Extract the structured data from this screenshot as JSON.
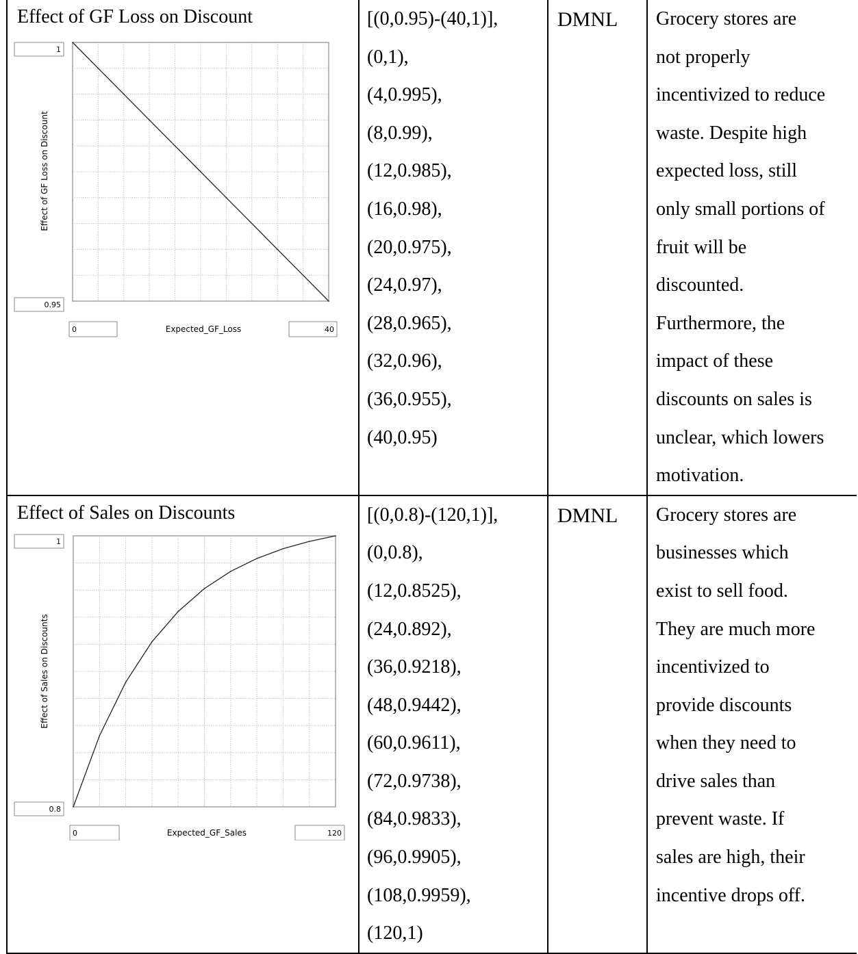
{
  "rows": [
    {
      "name": "Effect of GF Loss on Discount",
      "lookup_lines": [
        "[(0,0.95)-(40,1)],",
        "(0,1),",
        "(4,0.995),",
        "(8,0.99),",
        "(12,0.985),",
        "(16,0.98),",
        "(20,0.975),",
        "(24,0.97),",
        "(28,0.965),",
        "(32,0.96),",
        "(36,0.955),",
        "(40,0.95)"
      ],
      "unit": "DMNL",
      "description_lines": [
        "Grocery stores are",
        "not properly",
        "incentivized to reduce",
        "waste. Despite high",
        "expected loss, still",
        "only small portions of",
        "fruit will be",
        "discounted.",
        "Furthermore, the",
        "impact of these",
        "discounts on sales is",
        "unclear, which lowers",
        "motivation."
      ]
    },
    {
      "name": "Effect of Sales on Discounts",
      "lookup_lines": [
        "[(0,0.8)-(120,1)],",
        "(0,0.8),",
        "(12,0.8525),",
        "(24,0.892),",
        "(36,0.9218),",
        "(48,0.9442),",
        "(60,0.9611),",
        "(72,0.9738),",
        "(84,0.9833),",
        "(96,0.9905),",
        "(108,0.9959),",
        "(120,1)"
      ],
      "unit": "DMNL",
      "description_lines": [
        "Grocery stores are",
        "businesses which",
        "exist to sell food.",
        "They are much more",
        "incentivized to",
        "provide discounts",
        "when they need to",
        "drive sales than",
        "prevent waste. If",
        "sales are high, their",
        "incentive drops off."
      ]
    }
  ],
  "chart_data": [
    {
      "type": "line",
      "ylabel": "Effect of GF Loss on Discount",
      "xlabel": "Expected_GF_Loss",
      "xmin_label": "0",
      "xmax_label": "40",
      "ymin_label": "0.95",
      "ymax_label": "1",
      "xlim": [
        0,
        40
      ],
      "ylim": [
        0.95,
        1
      ],
      "grid": true,
      "x": [
        0,
        4,
        8,
        12,
        16,
        20,
        24,
        28,
        32,
        36,
        40
      ],
      "y": [
        1,
        0.995,
        0.99,
        0.985,
        0.98,
        0.975,
        0.97,
        0.965,
        0.96,
        0.955,
        0.95
      ]
    },
    {
      "type": "line",
      "ylabel": "Effect of Sales on Discounts",
      "xlabel": "Expected_GF_Sales",
      "xmin_label": "0",
      "xmax_label": "120",
      "ymin_label": "0.8",
      "ymax_label": "1",
      "xlim": [
        0,
        120
      ],
      "ylim": [
        0.8,
        1
      ],
      "grid": true,
      "x": [
        0,
        12,
        24,
        36,
        48,
        60,
        72,
        84,
        96,
        108,
        120
      ],
      "y": [
        0.8,
        0.8525,
        0.892,
        0.9218,
        0.9442,
        0.9611,
        0.9738,
        0.9833,
        0.9905,
        0.9959,
        1
      ]
    }
  ]
}
